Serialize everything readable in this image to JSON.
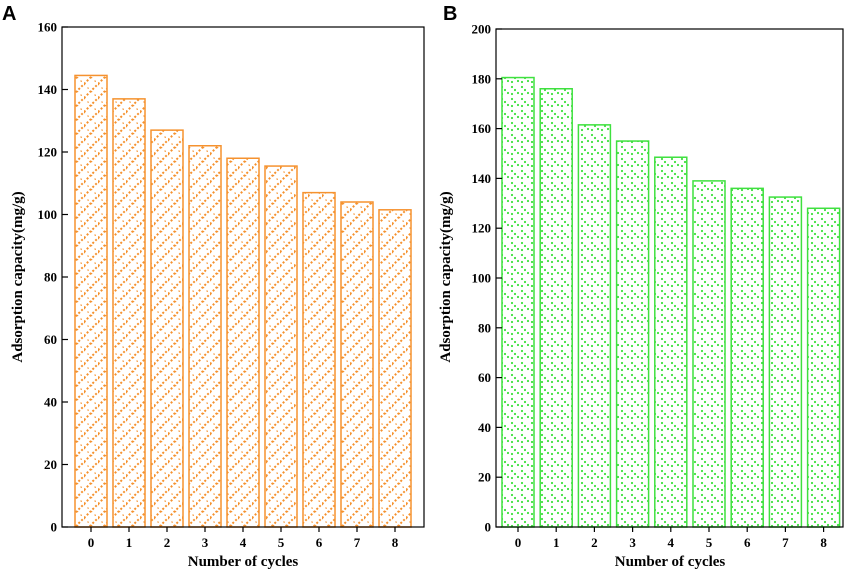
{
  "chart_data": [
    {
      "type": "bar",
      "panel_label": "A",
      "categories": [
        "0",
        "1",
        "2",
        "3",
        "4",
        "5",
        "6",
        "7",
        "8"
      ],
      "values": [
        144.5,
        137,
        127,
        122,
        118,
        115.5,
        107,
        104,
        101.5
      ],
      "xlabel": "Number of cycles",
      "ylabel": "Adsorption capacity(mg/g)",
      "ylim": [
        0,
        160
      ],
      "yticks": [
        "0",
        "20",
        "40",
        "60",
        "80",
        "100",
        "120",
        "140",
        "160"
      ],
      "grid": false,
      "color": "#f5922f",
      "fill_pattern": "zigzag"
    },
    {
      "type": "bar",
      "panel_label": "B",
      "categories": [
        "0",
        "1",
        "2",
        "3",
        "4",
        "5",
        "6",
        "7",
        "8"
      ],
      "values": [
        180.5,
        176,
        161.5,
        155,
        148.5,
        139,
        136,
        132.5,
        128
      ],
      "xlabel": "Number of cycles",
      "ylabel": "Adsorption capacity(mg/g)",
      "ylim": [
        0,
        200
      ],
      "yticks": [
        "0",
        "20",
        "40",
        "60",
        "80",
        "100",
        "120",
        "140",
        "160",
        "180",
        "200"
      ],
      "grid": false,
      "color": "#3fe03f",
      "fill_pattern": "dots"
    }
  ]
}
